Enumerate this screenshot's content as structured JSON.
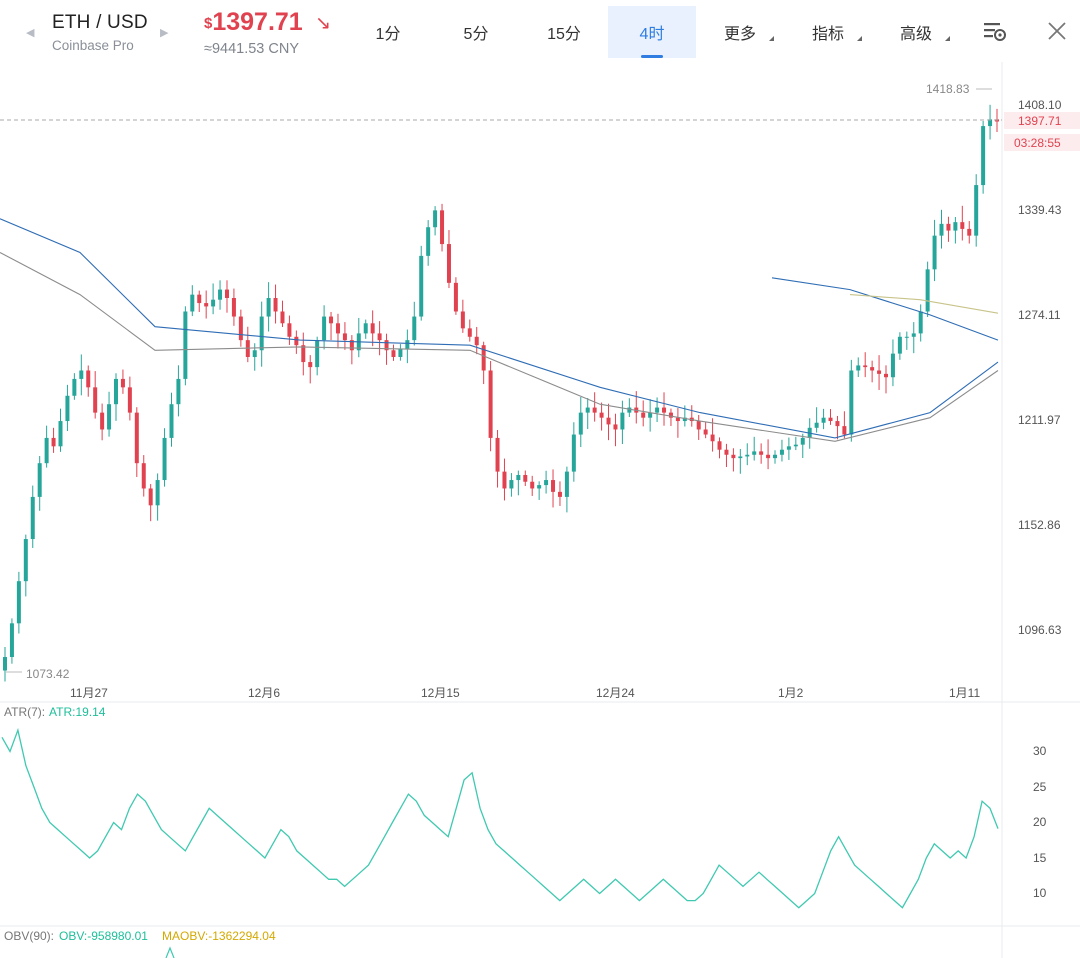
{
  "header": {
    "pair": "ETH / USD",
    "exchange": "Coinbase Pro",
    "price_currency_symbol": "$",
    "price": "1397.71",
    "price_direction_icon": "arrow-down-right-icon",
    "price_cny": "≈9441.53 CNY",
    "price_color": "#e0424f",
    "tabs": [
      {
        "label": "1分",
        "active": false
      },
      {
        "label": "5分",
        "active": false
      },
      {
        "label": "15分",
        "active": false
      },
      {
        "label": "4时",
        "active": true
      },
      {
        "label": "更多",
        "active": false,
        "dropdown": true
      },
      {
        "label": "指标",
        "active": false,
        "dropdown": true
      },
      {
        "label": "高级",
        "active": false,
        "dropdown": true
      }
    ],
    "icons": [
      "chart-settings-icon",
      "close-icon"
    ],
    "accent_color": "#2f7de1"
  },
  "chart_data": [
    {
      "type": "candlestick",
      "up_color": "#26a69a",
      "down_color": "#e0424f",
      "y_axis_labels": [
        "1408.10",
        "1339.43",
        "1274.11",
        "1211.97",
        "1152.86",
        "1096.63"
      ],
      "x_axis_labels": [
        "11月27",
        "12月6",
        "12月15",
        "12月24",
        "1月2",
        "1月11"
      ],
      "current_price_label": "1397.71",
      "countdown_label": "03:28:55",
      "max_label": "1418.83",
      "min_label": "1073.42",
      "close_series": [
        1080,
        1100,
        1125,
        1150,
        1175,
        1195,
        1210,
        1205,
        1220,
        1235,
        1245,
        1250,
        1240,
        1225,
        1215,
        1230,
        1245,
        1240,
        1225,
        1195,
        1180,
        1170,
        1185,
        1210,
        1230,
        1245,
        1285,
        1295,
        1290,
        1288,
        1292,
        1298,
        1293,
        1282,
        1268,
        1258,
        1262,
        1282,
        1293,
        1285,
        1278,
        1270,
        1265,
        1255,
        1252,
        1268,
        1282,
        1278,
        1272,
        1268,
        1262,
        1272,
        1278,
        1272,
        1268,
        1262,
        1258,
        1263,
        1268,
        1282,
        1318,
        1335,
        1345,
        1325,
        1302,
        1285,
        1275,
        1270,
        1265,
        1250,
        1210,
        1190,
        1180,
        1185,
        1188,
        1184,
        1180,
        1182,
        1185,
        1178,
        1175,
        1190,
        1212,
        1225,
        1228,
        1225,
        1222,
        1218,
        1215,
        1225,
        1228,
        1225,
        1222,
        1225,
        1228,
        1225,
        1222,
        1220,
        1222,
        1220,
        1215,
        1212,
        1208,
        1203,
        1200,
        1198,
        1199,
        1200,
        1202,
        1200,
        1198,
        1200,
        1203,
        1205,
        1206,
        1210,
        1216,
        1219,
        1222,
        1220,
        1217,
        1212,
        1250,
        1253,
        1252,
        1250,
        1248,
        1246,
        1260,
        1270,
        1270,
        1272,
        1285,
        1310,
        1330,
        1337,
        1333,
        1338,
        1334,
        1330,
        1360,
        1395,
        1399,
        1397.71
      ],
      "ma_blue": [
        [
          0,
          1340,
          80,
          1320,
          155,
          1276,
          300,
          1268,
          470,
          1265,
          600,
          1240,
          700,
          1225,
          835,
          1210,
          930,
          1225,
          998,
          1255
        ],
        [
          772,
          1305,
          850,
          1298,
          930,
          1283,
          998,
          1268
        ]
      ],
      "ma_gray": [
        [
          0,
          1320,
          80,
          1295,
          155,
          1262,
          300,
          1264,
          470,
          1262,
          600,
          1230,
          700,
          1220,
          835,
          1208,
          930,
          1222,
          998,
          1250
        ]
      ],
      "ma_olive": [
        [
          850,
          1295,
          920,
          1292,
          998,
          1284
        ]
      ]
    },
    {
      "type": "line",
      "indicator_label": "ATR(7):",
      "value_label": "ATR:19.14",
      "y_axis_labels": [
        "30",
        "25",
        "20",
        "15",
        "10"
      ],
      "ylim": [
        5,
        35
      ],
      "series": [
        {
          "values": [
            32,
            30,
            33,
            28,
            25,
            22,
            20,
            19,
            18,
            17,
            16,
            15,
            16,
            18,
            20,
            19,
            22,
            24,
            23,
            21,
            19,
            18,
            17,
            16,
            18,
            20,
            22,
            21,
            20,
            19,
            18,
            17,
            16,
            15,
            17,
            19,
            18,
            16,
            15,
            14,
            13,
            12,
            12,
            11,
            12,
            13,
            14,
            16,
            18,
            20,
            22,
            24,
            23,
            21,
            20,
            19,
            18,
            22,
            26,
            27,
            22,
            19,
            17,
            16,
            15,
            14,
            13,
            12,
            11,
            10,
            9,
            10,
            11,
            12,
            11,
            10,
            11,
            12,
            11,
            10,
            9,
            10,
            11,
            12,
            11,
            10,
            9,
            9,
            10,
            12,
            14,
            13,
            12,
            11,
            12,
            13,
            12,
            11,
            10,
            9,
            8,
            9,
            10,
            13,
            16,
            18,
            16,
            14,
            13,
            12,
            11,
            10,
            9,
            8,
            10,
            12,
            15,
            17,
            16,
            15,
            16,
            15,
            18,
            23,
            22,
            19.14
          ]
        }
      ]
    },
    {
      "type": "line",
      "indicator_label": "OBV(90):",
      "value_label": "OBV:-958980.01",
      "ma_label": "MAOBV:-1362294.04",
      "obv_color": "#1dbf9a",
      "maobv_color": "#d4a800"
    }
  ]
}
